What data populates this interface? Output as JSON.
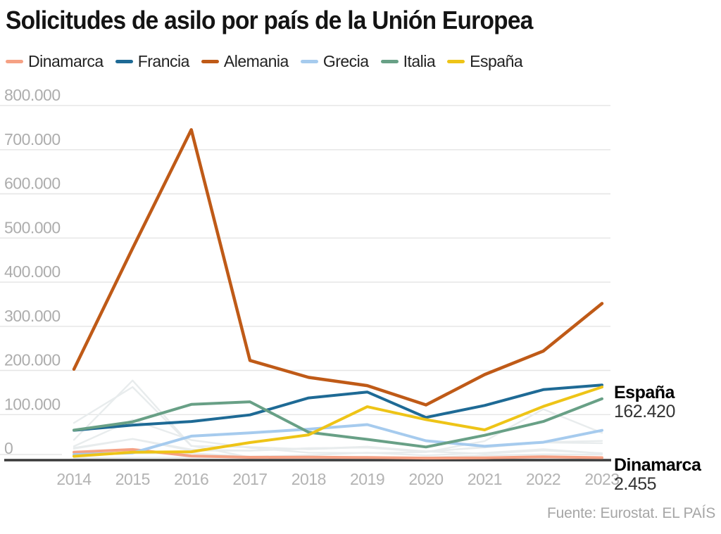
{
  "title": "Solicitudes de asilo por país de la Unión Europea",
  "source": {
    "label": "Fuente: Eurostat.",
    "brand": "EL PAÍS"
  },
  "colors": {
    "grid": "#e5e5e5",
    "axis_line": "#3a3a3a",
    "y_tick_label": "#adadad",
    "x_tick_label": "#b3b3b3",
    "background_line": "#e8eced"
  },
  "chart_data": {
    "type": "line",
    "title": "Solicitudes de asilo por país de la Unión Europea",
    "xlabel": "",
    "ylabel": "",
    "ylim": [
      0,
      800000
    ],
    "grid": true,
    "legend_position": "top",
    "x": [
      2014,
      2015,
      2016,
      2017,
      2018,
      2019,
      2020,
      2021,
      2022,
      2023
    ],
    "y_ticks": [
      {
        "label": "800.000",
        "value": 800000
      },
      {
        "label": "700.000",
        "value": 700000
      },
      {
        "label": "600.000",
        "value": 600000
      },
      {
        "label": "500.000",
        "value": 500000
      },
      {
        "label": "400.000",
        "value": 400000
      },
      {
        "label": "300.000",
        "value": 300000
      },
      {
        "label": "200.000",
        "value": 200000
      },
      {
        "label": "100.000",
        "value": 100000
      },
      {
        "label": "0",
        "value": 0
      }
    ],
    "series": [
      {
        "name": "Dinamarca",
        "color": "#f5a184",
        "width": 4,
        "values": [
          14680,
          20935,
          6180,
          3220,
          3570,
          2700,
          1475,
          2095,
          4475,
          2455
        ]
      },
      {
        "name": "Francia",
        "color": "#1e6a95",
        "width": 4,
        "values": [
          64310,
          76165,
          84270,
          99330,
          137665,
          151070,
          93475,
          120685,
          156455,
          166880
        ]
      },
      {
        "name": "Alemania",
        "color": "#bf5a17",
        "width": 4.5,
        "values": [
          202645,
          476510,
          745155,
          222560,
          184180,
          165615,
          121955,
          190545,
          243835,
          351510
        ]
      },
      {
        "name": "Grecia",
        "color": "#a6cbee",
        "width": 4,
        "values": [
          9430,
          13205,
          51110,
          58650,
          66965,
          77275,
          40560,
          28355,
          37360,
          64220
        ]
      },
      {
        "name": "Italia",
        "color": "#68a086",
        "width": 4,
        "values": [
          64625,
          83540,
          122960,
          128850,
          59950,
          43770,
          26535,
          53135,
          84290,
          135820
        ]
      },
      {
        "name": "España",
        "color": "#eec417",
        "width": 4,
        "values": [
          5615,
          14780,
          15755,
          36605,
          54050,
          117800,
          88530,
          65295,
          118445,
          162420
        ]
      }
    ],
    "background_series": [
      {
        "name": "otros-1",
        "values": [
          81180,
          162450,
          28790,
          26325,
          21560,
          26255,
          16225,
          11425,
          18635,
          12600
        ]
      },
      {
        "name": "otros-2",
        "values": [
          42775,
          177135,
          29430,
          3390,
          670,
          500,
          120,
          40,
          45,
          30
        ]
      },
      {
        "name": "otros-3",
        "values": [
          28035,
          88160,
          42255,
          24715,
          13710,
          12860,
          14775,
          39930,
          112270,
          58685
        ]
      },
      {
        "name": "otros-4",
        "values": [
          24495,
          44970,
          20945,
          18210,
          24025,
          25200,
          15255,
          26570,
          37650,
          40365
        ]
      },
      {
        "name": "otros-5",
        "values": [
          22710,
          44660,
          18280,
          18340,
          22530,
          27460,
          16710,
          25450,
          36735,
          35250
        ]
      },
      {
        "name": "otros-6",
        "values": [
          1745,
          2265,
          2940,
          4600,
          7765,
          13650,
          7495,
          13255,
          21565,
          11995
        ]
      },
      {
        "name": "otros-7",
        "values": [
          8020,
          12190,
          12305,
          5045,
          4110,
          4070,
          2785,
          7700,
          9820,
          9510
        ]
      }
    ],
    "annotations": [
      {
        "label": "España",
        "value": "162.420"
      },
      {
        "label": "Dinamarca",
        "value": "2.455"
      }
    ]
  }
}
